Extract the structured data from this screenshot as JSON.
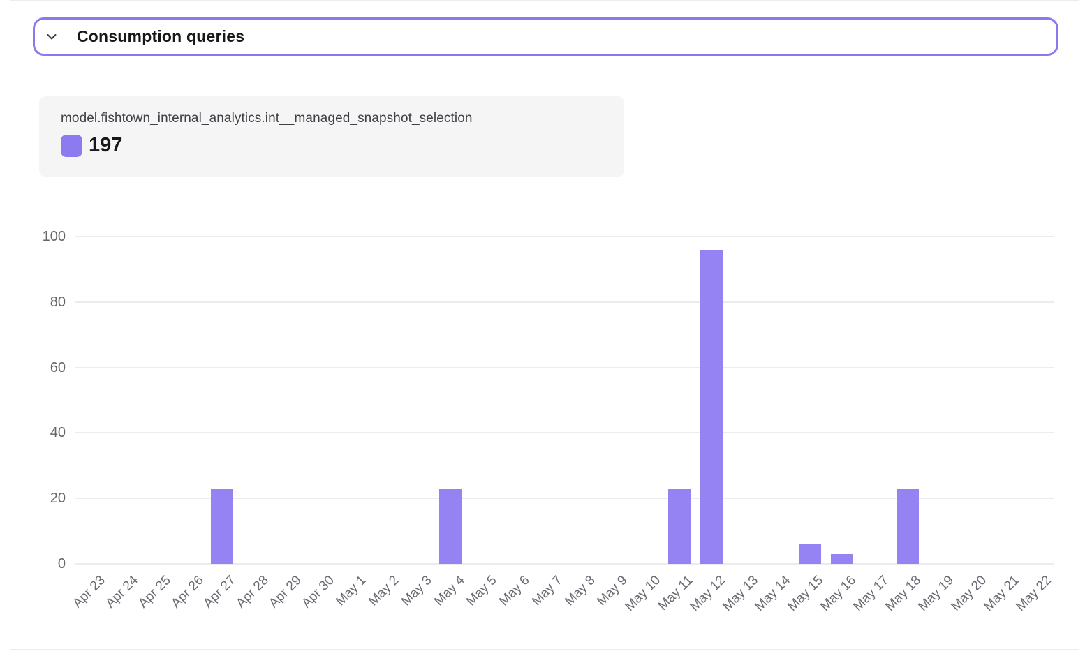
{
  "header": {
    "title": "Consumption queries"
  },
  "tooltip": {
    "series_name": "model.fishtown_internal_analytics.int__managed_snapshot_selection",
    "value": "197"
  },
  "colors": {
    "bar_purple": "#9583f4",
    "swatch_purple": "#8c7af0",
    "header_border_purple": "#8a79ec",
    "tooltip_bg": "#f5f5f6",
    "gridline_gray": "#ececee",
    "axis_text_gray": "#6e6973",
    "text_dark": "#18181b"
  },
  "chart_data": {
    "type": "bar",
    "title": "",
    "xlabel": "",
    "ylabel": "",
    "series_name": "model.fishtown_internal_analytics.int__managed_snapshot_selection",
    "categories": [
      "Apr 23",
      "Apr 24",
      "Apr 25",
      "Apr 26",
      "Apr 27",
      "Apr 28",
      "Apr 29",
      "Apr 30",
      "May 1",
      "May 2",
      "May 3",
      "May 4",
      "May 5",
      "May 6",
      "May 7",
      "May 8",
      "May 9",
      "May 10",
      "May 11",
      "May 12",
      "May 13",
      "May 14",
      "May 15",
      "May 16",
      "May 17",
      "May 18",
      "May 19",
      "May 20",
      "May 21",
      "May 22"
    ],
    "values": [
      0,
      0,
      0,
      0,
      23,
      0,
      0,
      0,
      0,
      0,
      0,
      23,
      0,
      0,
      0,
      0,
      0,
      0,
      23,
      96,
      0,
      0,
      6,
      3,
      0,
      23,
      0,
      0,
      0,
      0
    ],
    "total": 197,
    "ylim": [
      0,
      100
    ],
    "yticks": [
      0,
      20,
      40,
      60,
      80,
      100
    ],
    "grid": true,
    "bar_color": "#9583f4",
    "legend_position": "top-left-tooltip"
  }
}
